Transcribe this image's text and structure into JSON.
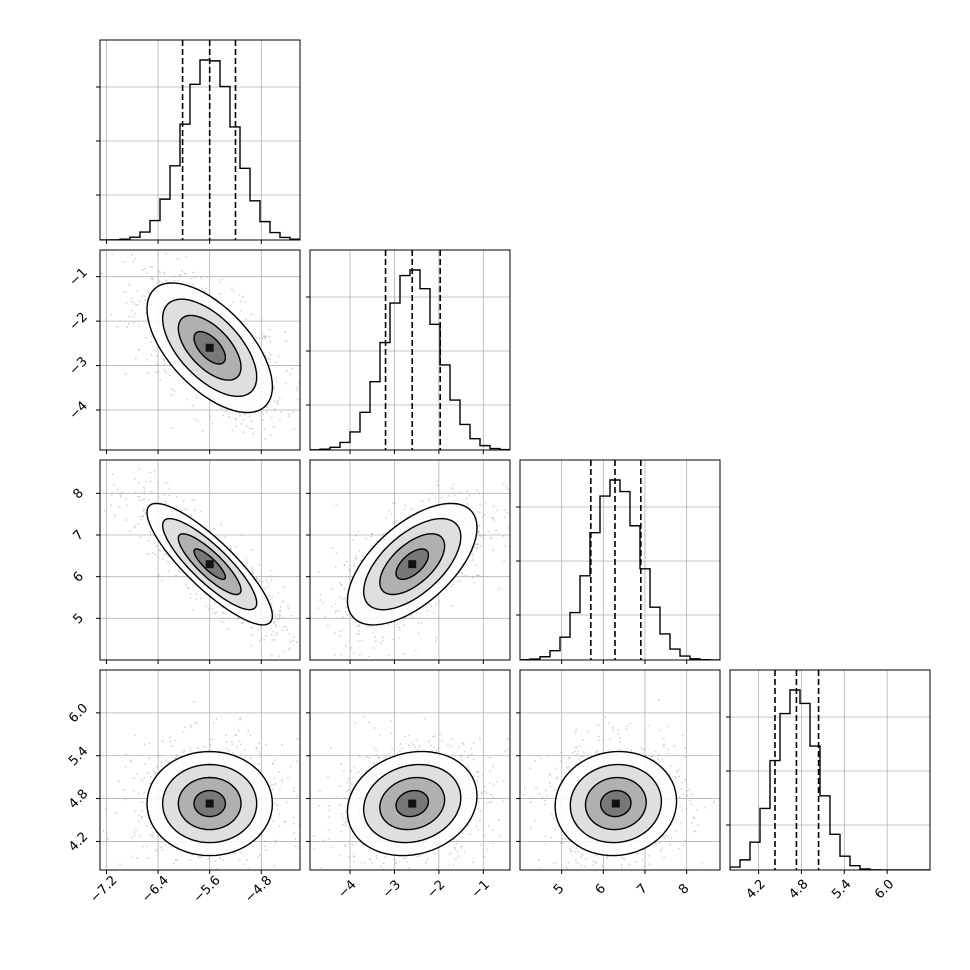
{
  "chart_data": {
    "type": "corner",
    "title": "",
    "params": [
      {
        "index": 0,
        "range": [
          -7.3,
          -4.2
        ],
        "ticks": [
          -7.2,
          -6.4,
          -5.6,
          -4.8
        ],
        "tick_labels": [
          "−7.2",
          "−6.4",
          "−5.6",
          "−4.8"
        ],
        "quantiles": [
          -6.02,
          -5.6,
          -5.2
        ],
        "mean": -5.6,
        "sd": 0.4
      },
      {
        "index": 1,
        "range": [
          -4.9,
          -0.4
        ],
        "ticks": [
          -4,
          -3,
          -2,
          -1
        ],
        "tick_labels": [
          "−4",
          "−3",
          "−2",
          "−1"
        ],
        "quantiles": [
          -3.2,
          -2.6,
          -1.97
        ],
        "mean": -2.6,
        "sd": 0.6
      },
      {
        "index": 2,
        "range": [
          4.0,
          8.8
        ],
        "ticks": [
          5,
          6,
          7,
          8
        ],
        "tick_labels": [
          "5",
          "6",
          "7",
          "8"
        ],
        "quantiles": [
          5.7,
          6.28,
          6.9
        ],
        "mean": 6.3,
        "sd": 0.6
      },
      {
        "index": 3,
        "range": [
          3.8,
          6.6
        ],
        "ticks": [
          4.2,
          4.8,
          5.4,
          6.0
        ],
        "tick_labels": [
          "4.2",
          "4.8",
          "5.4",
          "6.0"
        ],
        "quantiles": [
          4.43,
          4.73,
          5.04
        ],
        "mean": 4.73,
        "sd": 0.3
      }
    ],
    "correlations": [
      [
        1,
        -0.6,
        -0.85,
        0
      ],
      [
        -0.6,
        1,
        0.6,
        0.15
      ],
      [
        -0.85,
        0.6,
        1,
        0.05
      ],
      [
        0,
        0.15,
        0.05,
        1
      ]
    ],
    "histogram_bins": 20,
    "contour_levels_sigma": [
      0.5,
      1.0,
      1.5,
      2.0
    ],
    "grid": true,
    "colors": {
      "line": "#000000",
      "scatter": "#9e9e9e",
      "grid": "#b0b0b0"
    }
  }
}
